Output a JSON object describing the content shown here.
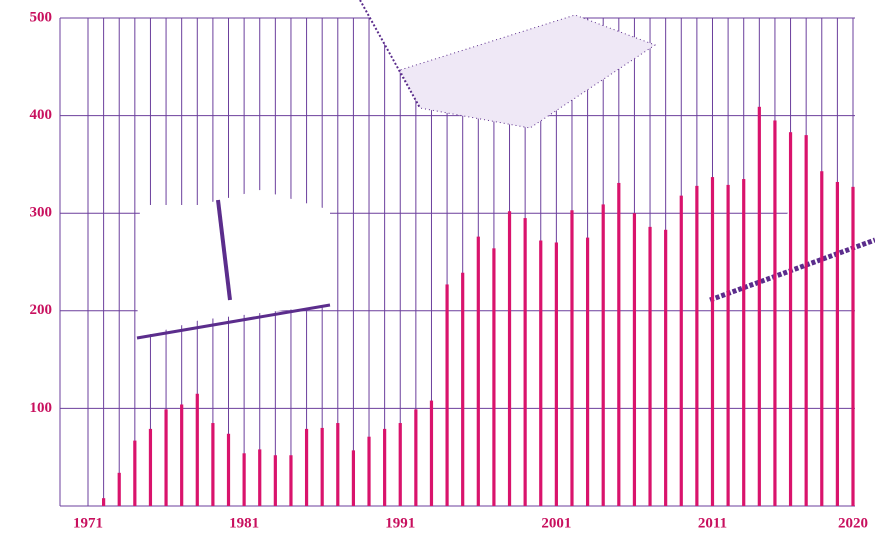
{
  "chart_data": {
    "type": "bar",
    "categories": [
      "1971",
      null,
      null,
      null,
      null,
      null,
      null,
      null,
      null,
      null,
      "1981",
      null,
      null,
      null,
      null,
      null,
      null,
      null,
      null,
      null,
      "1991",
      null,
      null,
      null,
      null,
      null,
      null,
      null,
      null,
      null,
      "2001",
      null,
      null,
      null,
      null,
      null,
      null,
      null,
      null,
      null,
      "2011",
      null,
      null,
      null,
      null,
      null,
      null,
      null,
      null,
      "2020"
    ],
    "values": [
      0,
      8,
      34,
      67,
      79,
      99,
      104,
      115,
      85,
      74,
      54,
      58,
      52,
      52,
      79,
      80,
      85,
      57,
      71,
      79,
      85,
      99,
      108,
      227,
      239,
      276,
      264,
      302,
      295,
      272,
      270,
      303,
      275,
      309,
      331,
      300,
      286,
      283,
      318,
      328,
      337,
      329,
      335,
      409,
      395,
      383,
      380,
      343,
      332,
      327
    ],
    "color": "#d9136c",
    "ylim": [
      0,
      500
    ],
    "yticks": [
      100,
      200,
      300,
      400,
      500
    ],
    "grid": true
  }
}
